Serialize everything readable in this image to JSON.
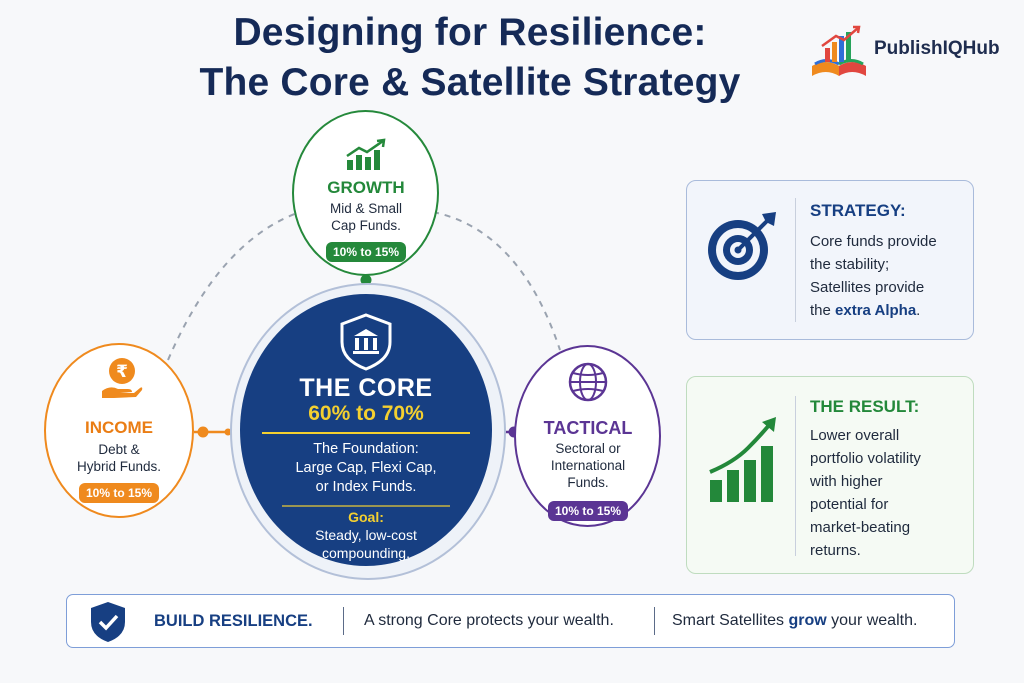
{
  "title": {
    "line1": "Designing for Resilience:",
    "line2": "The Core & Satellite Strategy"
  },
  "logo": {
    "text": "PublishIQHub",
    "icon": "open-book-chart-icon"
  },
  "growth": {
    "label": "GROWTH",
    "desc1": "Mid & Small",
    "desc2": "Cap Funds.",
    "allocation": "10% to 15%",
    "icon": "bar-chart-icon",
    "color": "#25893b"
  },
  "income": {
    "label": "INCOME",
    "desc1": "Debt &",
    "desc2": "Hybrid Funds.",
    "allocation": "10% to 15%",
    "icon": "rupee-hand-icon",
    "color": "#ef8a1e"
  },
  "tactical": {
    "label": "TACTICAL",
    "desc1": "Sectoral or",
    "desc2": "International",
    "desc3": "Funds.",
    "allocation": "10% to 15%",
    "icon": "globe-icon",
    "color": "#5b3594"
  },
  "core": {
    "title": "THE CORE",
    "allocation": "60% to 70%",
    "line1": "The Foundation:",
    "line2": "Large Cap, Flexi Cap,",
    "line3": "or Index Funds.",
    "goal_label": "Goal:",
    "goal1": "Steady, low-cost",
    "goal2": "compounding.",
    "icon": "shield-bank-icon",
    "color": "#173f82"
  },
  "strategy": {
    "heading": "STRATEGY:",
    "line1": "Core funds provide",
    "line2": "the stability;",
    "line3": "Satellites provide",
    "line4_prefix": "the ",
    "line4_emph": "extra Alpha",
    "line4_suffix": ".",
    "icon": "target-icon"
  },
  "result": {
    "heading": "THE RESULT:",
    "line1": "Lower overall",
    "line2": "portfolio volatility",
    "line3": "with higher",
    "line4": "potential for",
    "line5": "market-beating",
    "line6": "returns.",
    "icon": "growth-chart-icon"
  },
  "banner": {
    "heading": "BUILD RESILIENCE.",
    "text1": "A strong Core protects your wealth.",
    "text2_prefix": "Smart Satellites ",
    "text2_emph": "grow",
    "text2_suffix": " your wealth.",
    "icon": "shield-check-icon"
  }
}
